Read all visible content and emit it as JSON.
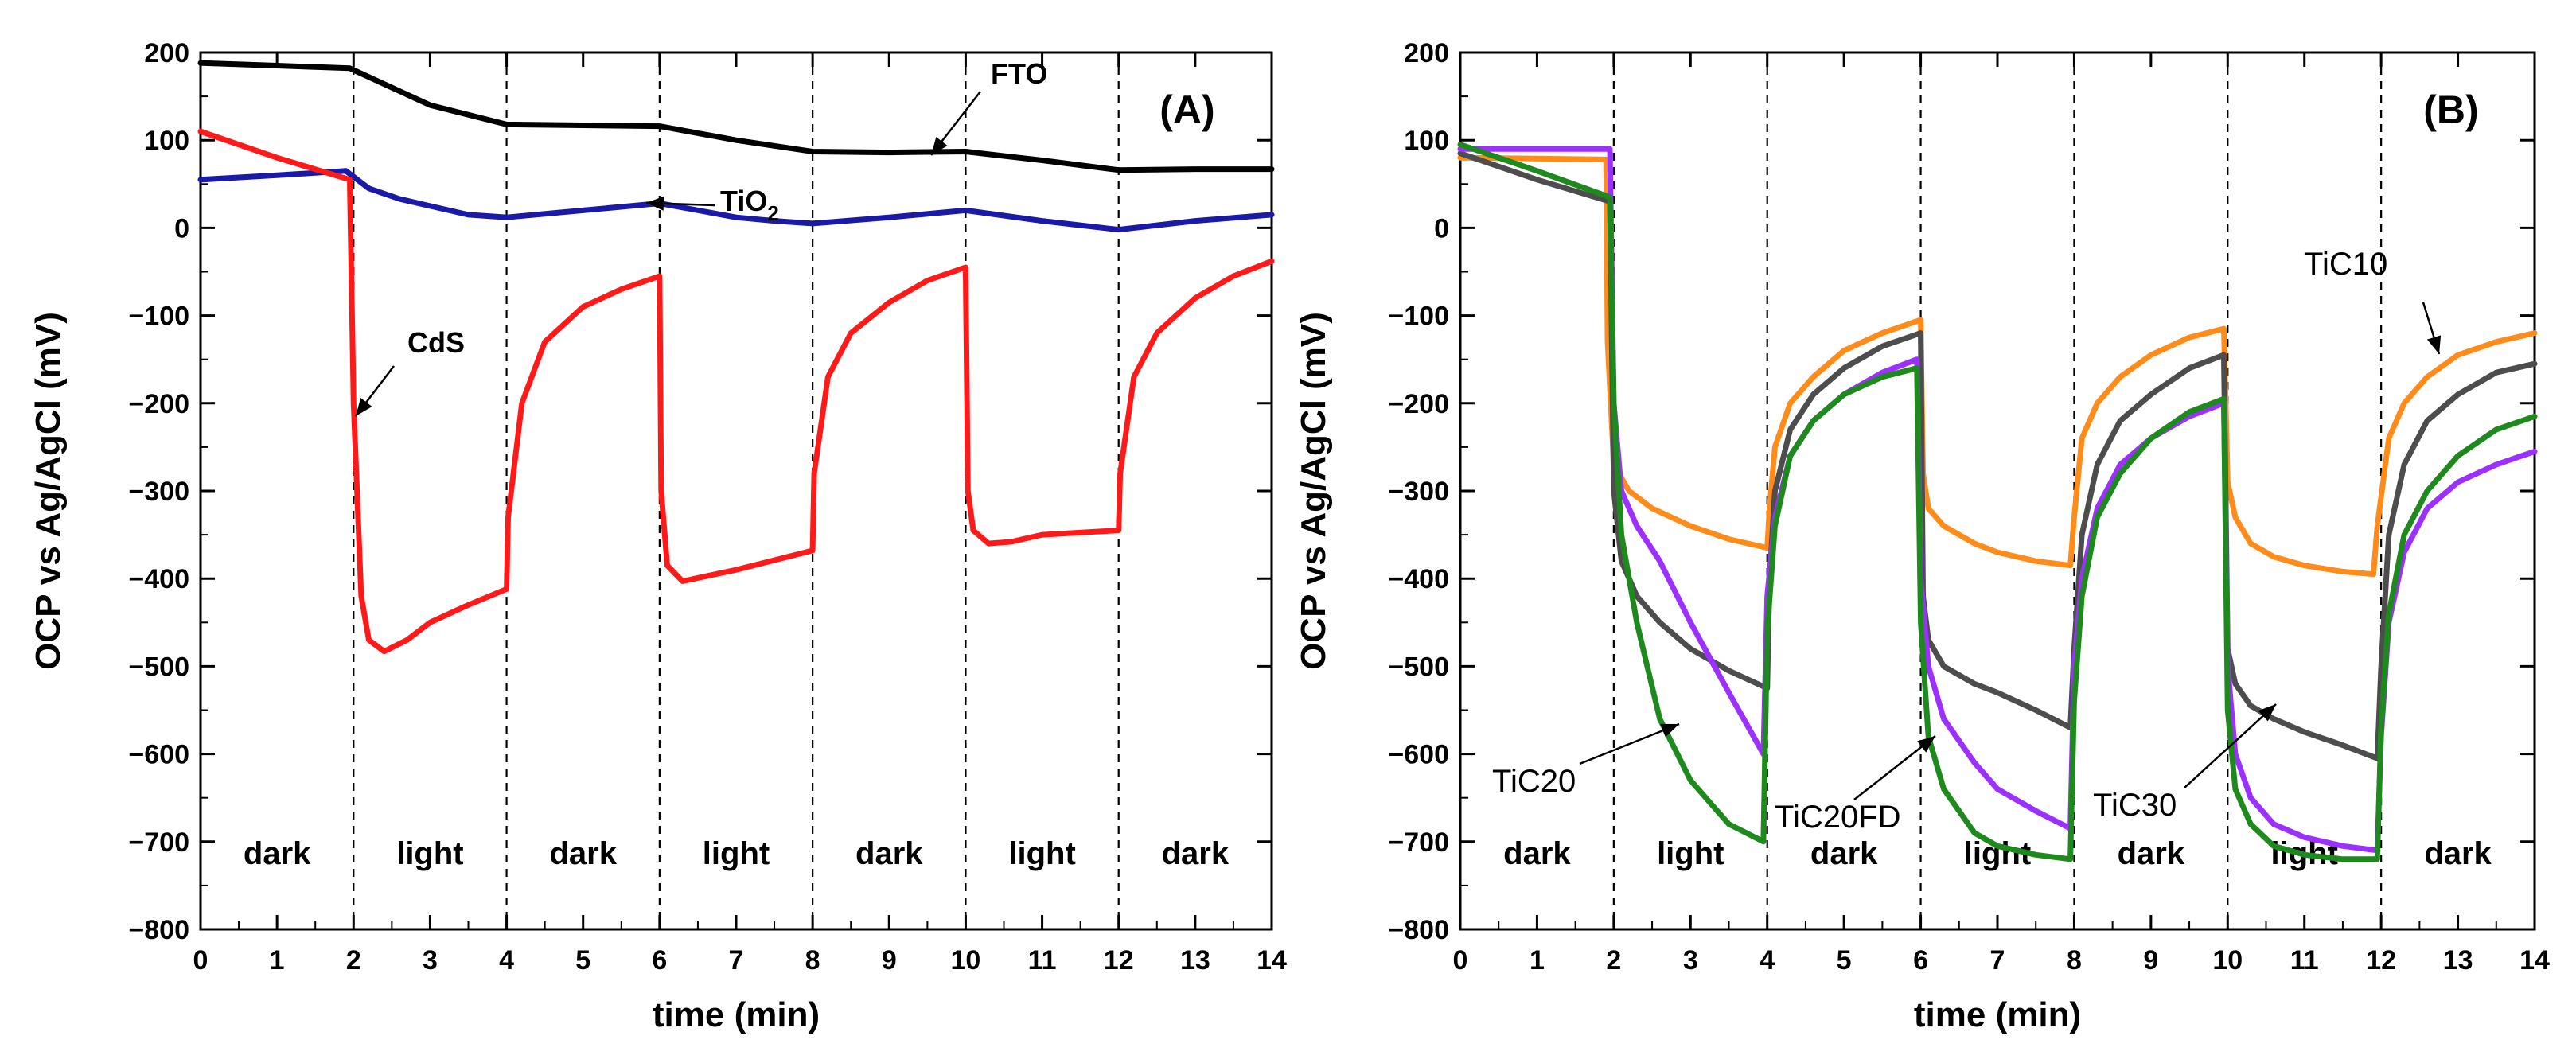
{
  "chart_data": [
    {
      "type": "line",
      "panel_label": "(A)",
      "xlabel": "time (min)",
      "ylabel": "OCP vs Ag/AgCl (mV)",
      "xlim": [
        0,
        14
      ],
      "ylim": [
        -800,
        200
      ],
      "xticks": [
        0,
        1,
        2,
        3,
        4,
        5,
        6,
        7,
        8,
        9,
        10,
        11,
        12,
        13,
        14
      ],
      "yticks": [
        200,
        100,
        0,
        -100,
        -200,
        -300,
        -400,
        -500,
        -600,
        -700,
        -800
      ],
      "ytick_labels": [
        "200",
        "100",
        "0",
        "−100",
        "−200",
        "−300",
        "−400",
        "−500",
        "−600",
        "−700",
        "−800"
      ],
      "grid": false,
      "phase_boundaries": [
        2,
        4,
        6,
        8,
        10,
        12
      ],
      "phases": [
        {
          "label": "dark",
          "center": 1
        },
        {
          "label": "light",
          "center": 3
        },
        {
          "label": "dark",
          "center": 5
        },
        {
          "label": "light",
          "center": 7
        },
        {
          "label": "dark",
          "center": 9
        },
        {
          "label": "light",
          "center": 11
        },
        {
          "label": "dark",
          "center": 13
        }
      ],
      "series": [
        {
          "name": "FTO",
          "color": "#000000",
          "x": [
            0,
            1,
            1.95,
            2.5,
            3,
            4,
            5,
            6,
            7,
            8,
            9,
            10,
            11,
            12,
            13,
            14
          ],
          "y": [
            188,
            185,
            182,
            160,
            140,
            118,
            117,
            116,
            100,
            87,
            86,
            87,
            77,
            66,
            67,
            67
          ]
        },
        {
          "name": "TiO2",
          "color": "#1a1aa6",
          "x": [
            0,
            1,
            1.9,
            2.2,
            2.6,
            3,
            3.5,
            4,
            5,
            6,
            7,
            7.5,
            8,
            9,
            10,
            11,
            12,
            13,
            14
          ],
          "y": [
            55,
            60,
            65,
            45,
            33,
            25,
            15,
            12,
            20,
            28,
            12,
            8,
            5,
            12,
            20,
            8,
            -2,
            8,
            15
          ]
        },
        {
          "name": "CdS",
          "color": "#ff1a1a",
          "x": [
            0,
            1,
            1.95,
            2.0,
            2.1,
            2.2,
            2.4,
            2.7,
            3,
            3.5,
            4.0,
            4.02,
            4.2,
            4.5,
            5,
            5.5,
            6.0,
            6.02,
            6.1,
            6.3,
            7,
            8.0,
            8.02,
            8.2,
            8.5,
            9,
            9.5,
            10.0,
            10.03,
            10.1,
            10.3,
            10.6,
            11,
            12.0,
            12.02,
            12.2,
            12.5,
            13,
            13.5,
            14
          ],
          "y": [
            110,
            80,
            55,
            -200,
            -420,
            -470,
            -483,
            -470,
            -450,
            -430,
            -412,
            -330,
            -200,
            -130,
            -90,
            -70,
            -55,
            -300,
            -385,
            -403,
            -390,
            -368,
            -280,
            -170,
            -120,
            -85,
            -60,
            -45,
            -300,
            -345,
            -360,
            -358,
            -350,
            -345,
            -280,
            -170,
            -120,
            -80,
            -55,
            -38
          ]
        }
      ],
      "annotations": [
        {
          "text": "FTO",
          "target_series": "FTO"
        },
        {
          "text": "TiO",
          "subscript": "2",
          "target_series": "TiO2"
        },
        {
          "text": "CdS",
          "target_series": "CdS"
        }
      ]
    },
    {
      "type": "line",
      "panel_label": "(B)",
      "xlabel": "time (min)",
      "ylabel": "OCP vs Ag/AgCl (mV)",
      "xlim": [
        0,
        14
      ],
      "ylim": [
        -800,
        200
      ],
      "xticks": [
        0,
        1,
        2,
        3,
        4,
        5,
        6,
        7,
        8,
        9,
        10,
        11,
        12,
        13,
        14
      ],
      "yticks": [
        200,
        100,
        0,
        -100,
        -200,
        -300,
        -400,
        -500,
        -600,
        -700,
        -800
      ],
      "ytick_labels": [
        "200",
        "100",
        "0",
        "−100",
        "−200",
        "−300",
        "−400",
        "−500",
        "−600",
        "−700",
        "−800"
      ],
      "grid": false,
      "phase_boundaries": [
        2,
        4,
        6,
        8,
        10,
        12
      ],
      "phases": [
        {
          "label": "dark",
          "center": 1
        },
        {
          "label": "light",
          "center": 3
        },
        {
          "label": "dark",
          "center": 5
        },
        {
          "label": "light",
          "center": 7
        },
        {
          "label": "dark",
          "center": 9
        },
        {
          "label": "light",
          "center": 11
        },
        {
          "label": "dark",
          "center": 13
        }
      ],
      "series": [
        {
          "name": "TiC10",
          "color": "#ff8c1a",
          "x": [
            0,
            1.9,
            1.92,
            2.0,
            2.2,
            2.5,
            3,
            3.5,
            4.0,
            4.03,
            4.1,
            4.3,
            4.6,
            5,
            5.5,
            6.0,
            6.03,
            6.1,
            6.3,
            6.7,
            7,
            7.5,
            7.95,
            8.0,
            8.1,
            8.3,
            8.6,
            9,
            9.5,
            9.95,
            10.0,
            10.1,
            10.3,
            10.6,
            11,
            11.5,
            11.9,
            11.95,
            12.1,
            12.3,
            12.6,
            13,
            13.5,
            14
          ],
          "y": [
            80,
            78,
            -130,
            -270,
            -300,
            -320,
            -340,
            -355,
            -365,
            -320,
            -250,
            -200,
            -170,
            -140,
            -120,
            -105,
            -280,
            -320,
            -340,
            -360,
            -370,
            -380,
            -385,
            -330,
            -240,
            -200,
            -170,
            -145,
            -125,
            -115,
            -290,
            -330,
            -360,
            -375,
            -385,
            -392,
            -395,
            -340,
            -240,
            -200,
            -170,
            -145,
            -130,
            -120
          ]
        },
        {
          "name": "TiC20FD",
          "color": "#4d4d4d",
          "x": [
            0,
            1,
            1.95,
            2.0,
            2.1,
            2.3,
            2.6,
            3,
            3.5,
            4.0,
            4.03,
            4.1,
            4.3,
            4.6,
            5,
            5.5,
            6.0,
            6.03,
            6.1,
            6.3,
            6.7,
            7,
            7.5,
            7.95,
            8.0,
            8.1,
            8.3,
            8.6,
            9,
            9.5,
            9.95,
            10.0,
            10.1,
            10.3,
            10.6,
            11,
            11.5,
            11.95,
            12.0,
            12.1,
            12.3,
            12.6,
            13,
            13.5,
            14
          ],
          "y": [
            85,
            55,
            30,
            -300,
            -380,
            -420,
            -450,
            -480,
            -505,
            -525,
            -400,
            -300,
            -230,
            -190,
            -160,
            -135,
            -120,
            -420,
            -470,
            -500,
            -520,
            -530,
            -550,
            -570,
            -480,
            -350,
            -270,
            -220,
            -190,
            -160,
            -145,
            -480,
            -520,
            -545,
            -560,
            -575,
            -590,
            -605,
            -500,
            -350,
            -270,
            -220,
            -190,
            -165,
            -155
          ]
        },
        {
          "name": "TiC30",
          "color": "#9b30ff",
          "x": [
            0,
            1.9,
            1.95,
            2.0,
            2.1,
            2.3,
            2.6,
            3,
            3.5,
            3.95,
            4.0,
            4.1,
            4.3,
            4.6,
            5,
            5.5,
            5.95,
            6.0,
            6.1,
            6.3,
            6.7,
            7,
            7.5,
            7.95,
            8.0,
            8.1,
            8.3,
            8.6,
            9,
            9.5,
            9.95,
            10.0,
            10.1,
            10.3,
            10.6,
            11,
            11.5,
            11.95,
            12.0,
            12.1,
            12.3,
            12.6,
            13,
            13.5,
            14
          ],
          "y": [
            90,
            90,
            90,
            -200,
            -300,
            -340,
            -380,
            -450,
            -530,
            -600,
            -420,
            -330,
            -260,
            -220,
            -190,
            -165,
            -150,
            -400,
            -500,
            -560,
            -610,
            -640,
            -665,
            -685,
            -500,
            -400,
            -320,
            -270,
            -240,
            -215,
            -200,
            -500,
            -600,
            -650,
            -680,
            -695,
            -705,
            -710,
            -580,
            -450,
            -370,
            -320,
            -290,
            -270,
            -255
          ]
        },
        {
          "name": "TiC20",
          "color": "#1e8a1e",
          "x": [
            0,
            1,
            1.95,
            2.0,
            2.1,
            2.3,
            2.6,
            3,
            3.5,
            3.95,
            4.0,
            4.1,
            4.3,
            4.6,
            5,
            5.5,
            5.95,
            6.0,
            6.1,
            6.3,
            6.7,
            7,
            7.5,
            7.95,
            8.0,
            8.1,
            8.3,
            8.6,
            9,
            9.5,
            9.95,
            10.0,
            10.1,
            10.3,
            10.6,
            11,
            11.5,
            11.95,
            12.0,
            12.1,
            12.3,
            12.6,
            13,
            13.5,
            14
          ],
          "y": [
            95,
            65,
            35,
            -200,
            -350,
            -450,
            -560,
            -630,
            -680,
            -700,
            -460,
            -340,
            -260,
            -220,
            -190,
            -170,
            -160,
            -450,
            -580,
            -640,
            -690,
            -705,
            -715,
            -720,
            -540,
            -420,
            -330,
            -280,
            -240,
            -210,
            -195,
            -550,
            -640,
            -680,
            -705,
            -715,
            -720,
            -720,
            -570,
            -440,
            -350,
            -300,
            -260,
            -230,
            -215
          ]
        }
      ],
      "annotations": [
        {
          "text": "TiC10",
          "target_series": "TiC10"
        },
        {
          "text": "TiC20",
          "target_series": "TiC20"
        },
        {
          "text": "TiC20FD",
          "target_series": "TiC20FD"
        },
        {
          "text": "TiC30",
          "target_series": "TiC30"
        }
      ]
    }
  ]
}
